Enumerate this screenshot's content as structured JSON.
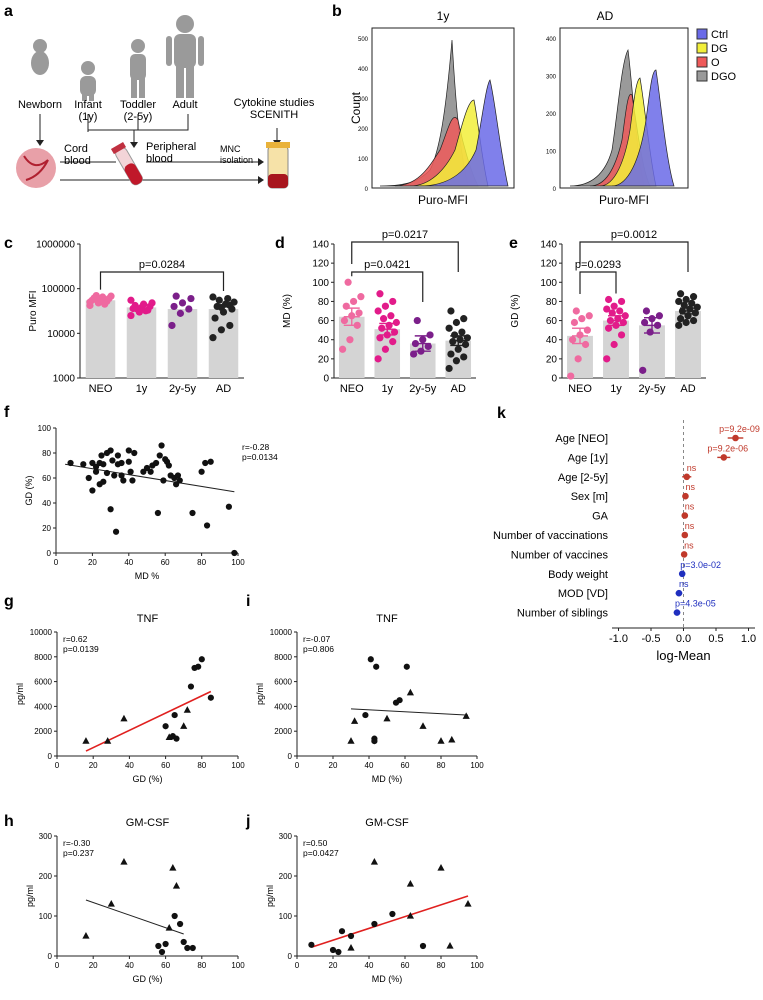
{
  "panel_letters": [
    "a",
    "b",
    "c",
    "d",
    "e",
    "f",
    "g",
    "h",
    "i",
    "j",
    "k"
  ],
  "panel_a": {
    "stages": [
      "Newborn",
      "Infant\n(1y)",
      "Toddler\n(2-5y)",
      "Adult"
    ],
    "labels": {
      "cord_blood": "Cord\nblood",
      "peripheral_blood": "Peripheral\nblood",
      "mnc": "MNC\nisolation",
      "studies": "Cytokine studies\nSCENITH"
    }
  },
  "panel_b": {
    "legend": [
      {
        "name": "Ctrl",
        "color": "#6a6ae8"
      },
      {
        "name": "DG",
        "color": "#f2ef3a"
      },
      {
        "name": "O",
        "color": "#ef5a5a"
      },
      {
        "name": "DGO",
        "color": "#9a9a9a"
      }
    ],
    "plots": [
      {
        "title": "1y",
        "ylabel": "Count",
        "xlabel": "Puro-MFI",
        "yticks": [
          "0",
          "100",
          "200",
          "300",
          "400",
          "500"
        ]
      },
      {
        "title": "AD",
        "ylabel": "",
        "xlabel": "Puro-MFI",
        "yticks": [
          "0",
          "100",
          "200",
          "300",
          "400"
        ]
      }
    ]
  },
  "chart_data": [
    {
      "id": "c",
      "type": "bar",
      "scale": "log",
      "ylabel": "Puro MFI",
      "categories": [
        "NEO",
        "1y",
        "2y-5y",
        "AD"
      ],
      "values": [
        55000,
        38000,
        35000,
        35000
      ],
      "colors": [
        "#ef6aa0",
        "#e21b8a",
        "#7b1f8a",
        "#222222"
      ],
      "yticks": [
        "1000",
        "10000",
        "100000",
        "1000000"
      ],
      "ylim": [
        1000,
        1000000
      ],
      "points": [
        [
          42000,
          48000,
          52000,
          55000,
          58000,
          60000,
          62000,
          65000,
          68000,
          70000,
          45000,
          50000
        ],
        [
          25000,
          30000,
          33000,
          36000,
          38000,
          40000,
          42000,
          45000,
          48000,
          35000,
          32000,
          55000
        ],
        [
          15000,
          28000,
          35000,
          40000,
          48000,
          60000,
          68000
        ],
        [
          8000,
          12000,
          15000,
          22000,
          30000,
          35000,
          40000,
          45000,
          50000,
          55000,
          60000,
          65000,
          38000,
          42000
        ]
      ],
      "brackets": [
        {
          "from": 0,
          "to": 3,
          "label": "p=0.0284",
          "level": 1
        }
      ]
    },
    {
      "id": "d",
      "type": "bar",
      "scale": "linear",
      "ylabel": "MD (%)",
      "categories": [
        "NEO",
        "1y",
        "2y-5y",
        "AD"
      ],
      "values": [
        64,
        51,
        36,
        39
      ],
      "errors": [
        9,
        6,
        8,
        5
      ],
      "colors": [
        "#ef6aa0",
        "#e21b8a",
        "#7b1f8a",
        "#222222"
      ],
      "yticks": [
        "0",
        "20",
        "40",
        "60",
        "80",
        "100",
        "120",
        "140"
      ],
      "ylim": [
        0,
        140
      ],
      "points": [
        [
          30,
          40,
          55,
          60,
          65,
          68,
          75,
          80,
          85,
          100
        ],
        [
          20,
          30,
          38,
          42,
          45,
          48,
          52,
          55,
          58,
          62,
          65,
          70,
          75,
          80,
          88
        ],
        [
          25,
          28,
          33,
          36,
          40,
          45,
          60
        ],
        [
          10,
          18,
          22,
          25,
          30,
          35,
          38,
          40,
          42,
          45,
          48,
          52,
          58,
          62,
          70
        ]
      ],
      "brackets": [
        {
          "from": 0,
          "to": 2,
          "label": "p=0.0421",
          "level": 1
        },
        {
          "from": 0,
          "to": 3,
          "label": "p=0.0217",
          "level": 2
        }
      ]
    },
    {
      "id": "e",
      "type": "bar",
      "scale": "linear",
      "ylabel": "GD (%)",
      "categories": [
        "NEO",
        "1y",
        "2y-5y",
        "AD"
      ],
      "values": [
        44,
        60,
        55,
        70
      ],
      "errors": [
        8,
        5,
        8,
        3
      ],
      "colors": [
        "#ef6aa0",
        "#e21b8a",
        "#7b1f8a",
        "#222222"
      ],
      "yticks": [
        "0",
        "20",
        "40",
        "60",
        "80",
        "100",
        "120",
        "140"
      ],
      "ylim": [
        0,
        140
      ],
      "points": [
        [
          2,
          20,
          35,
          40,
          45,
          50,
          58,
          62,
          65,
          70
        ],
        [
          20,
          35,
          45,
          52,
          55,
          58,
          60,
          62,
          65,
          68,
          70,
          72,
          75,
          80,
          82
        ],
        [
          8,
          48,
          55,
          58,
          62,
          65,
          70
        ],
        [
          55,
          58,
          60,
          62,
          65,
          68,
          70,
          72,
          74,
          76,
          78,
          80,
          82,
          85,
          88
        ]
      ],
      "brackets": [
        {
          "from": 0,
          "to": 1,
          "label": "p=0.0293",
          "level": 1
        },
        {
          "from": 0,
          "to": 3,
          "label": "p=0.0012",
          "level": 2
        }
      ]
    },
    {
      "id": "f",
      "type": "scatter",
      "xlabel": "MD %",
      "ylabel": "GD (%)",
      "xticks": [
        "0",
        "20",
        "40",
        "60",
        "80",
        "100"
      ],
      "yticks": [
        "0",
        "20",
        "40",
        "60",
        "80",
        "100"
      ],
      "xlim": [
        0,
        100
      ],
      "ylim": [
        0,
        100
      ],
      "stats": [
        "r=-0.28",
        "p=0.0134"
      ],
      "fit": {
        "x0": 5,
        "y0": 71,
        "x1": 98,
        "y1": 49,
        "color": "#222"
      },
      "points": [
        [
          8,
          72
        ],
        [
          15,
          71
        ],
        [
          18,
          60
        ],
        [
          20,
          50
        ],
        [
          20,
          72
        ],
        [
          22,
          65
        ],
        [
          22,
          69
        ],
        [
          24,
          55
        ],
        [
          24,
          72
        ],
        [
          25,
          78
        ],
        [
          26,
          71
        ],
        [
          26,
          57
        ],
        [
          28,
          80
        ],
        [
          28,
          64
        ],
        [
          30,
          35
        ],
        [
          30,
          82
        ],
        [
          31,
          74
        ],
        [
          32,
          62
        ],
        [
          33,
          17
        ],
        [
          34,
          71
        ],
        [
          34,
          78
        ],
        [
          36,
          72
        ],
        [
          36,
          62
        ],
        [
          37,
          58
        ],
        [
          40,
          73
        ],
        [
          40,
          82
        ],
        [
          41,
          65
        ],
        [
          42,
          58
        ],
        [
          43,
          80
        ],
        [
          48,
          65
        ],
        [
          50,
          68
        ],
        [
          52,
          65
        ],
        [
          53,
          70
        ],
        [
          55,
          72
        ],
        [
          56,
          32
        ],
        [
          57,
          78
        ],
        [
          58,
          86
        ],
        [
          59,
          58
        ],
        [
          60,
          75
        ],
        [
          61,
          73
        ],
        [
          62,
          70
        ],
        [
          63,
          62
        ],
        [
          65,
          60
        ],
        [
          66,
          55
        ],
        [
          67,
          62
        ],
        [
          68,
          58
        ],
        [
          75,
          32
        ],
        [
          80,
          65
        ],
        [
          82,
          72
        ],
        [
          83,
          22
        ],
        [
          85,
          73
        ],
        [
          95,
          37
        ],
        [
          98,
          0
        ]
      ]
    },
    {
      "id": "g",
      "type": "scatter",
      "title": "TNF",
      "xlabel": "GD (%)",
      "ylabel": "pg/ml",
      "xticks": [
        "0",
        "20",
        "40",
        "60",
        "80",
        "100"
      ],
      "yticks": [
        "0",
        "2000",
        "4000",
        "6000",
        "8000",
        "10000"
      ],
      "xlim": [
        0,
        100
      ],
      "ylim": [
        0,
        10000
      ],
      "stats": [
        "r=0.62",
        "p=0.0139"
      ],
      "fit": {
        "x0": 16,
        "y0": 400,
        "x1": 85,
        "y1": 5200,
        "color": "#e0201f"
      },
      "points": [
        {
          "x": 16,
          "y": 1200,
          "m": "t"
        },
        {
          "x": 28,
          "y": 1200,
          "m": "t"
        },
        {
          "x": 37,
          "y": 3000,
          "m": "t"
        },
        {
          "x": 60,
          "y": 2400,
          "m": "c"
        },
        {
          "x": 62,
          "y": 1500,
          "m": "t"
        },
        {
          "x": 64,
          "y": 1600,
          "m": "c"
        },
        {
          "x": 65,
          "y": 3300,
          "m": "c"
        },
        {
          "x": 66,
          "y": 1400,
          "m": "c"
        },
        {
          "x": 70,
          "y": 2400,
          "m": "t"
        },
        {
          "x": 72,
          "y": 3700,
          "m": "t"
        },
        {
          "x": 74,
          "y": 5600,
          "m": "c"
        },
        {
          "x": 76,
          "y": 7100,
          "m": "c"
        },
        {
          "x": 78,
          "y": 7200,
          "m": "c"
        },
        {
          "x": 80,
          "y": 7800,
          "m": "c"
        },
        {
          "x": 85,
          "y": 4700,
          "m": "c"
        }
      ]
    },
    {
      "id": "i",
      "type": "scatter",
      "title": "TNF",
      "xlabel": "MD (%)",
      "ylabel": "pg/ml",
      "xticks": [
        "0",
        "20",
        "40",
        "60",
        "80",
        "100"
      ],
      "yticks": [
        "0",
        "2000",
        "4000",
        "6000",
        "8000",
        "10000"
      ],
      "xlim": [
        0,
        100
      ],
      "ylim": [
        0,
        10000
      ],
      "stats": [
        "r=-0.07",
        "p=0.806"
      ],
      "fit": {
        "x0": 30,
        "y0": 3800,
        "x1": 95,
        "y1": 3300,
        "color": "#222"
      },
      "points": [
        {
          "x": 30,
          "y": 1200,
          "m": "t"
        },
        {
          "x": 32,
          "y": 2800,
          "m": "t"
        },
        {
          "x": 38,
          "y": 3300,
          "m": "c"
        },
        {
          "x": 41,
          "y": 7800,
          "m": "c"
        },
        {
          "x": 43,
          "y": 1400,
          "m": "c"
        },
        {
          "x": 43,
          "y": 1200,
          "m": "c"
        },
        {
          "x": 44,
          "y": 7200,
          "m": "c"
        },
        {
          "x": 50,
          "y": 3000,
          "m": "t"
        },
        {
          "x": 55,
          "y": 4300,
          "m": "c"
        },
        {
          "x": 57,
          "y": 4500,
          "m": "c"
        },
        {
          "x": 61,
          "y": 7200,
          "m": "c"
        },
        {
          "x": 63,
          "y": 5100,
          "m": "t"
        },
        {
          "x": 70,
          "y": 2400,
          "m": "t"
        },
        {
          "x": 80,
          "y": 1200,
          "m": "t"
        },
        {
          "x": 86,
          "y": 1300,
          "m": "t"
        },
        {
          "x": 94,
          "y": 3200,
          "m": "t"
        }
      ]
    },
    {
      "id": "h",
      "type": "scatter",
      "title": "GM-CSF",
      "xlabel": "GD (%)",
      "ylabel": "pg/ml",
      "xticks": [
        "0",
        "20",
        "40",
        "60",
        "80",
        "100"
      ],
      "yticks": [
        "0",
        "100",
        "200",
        "300"
      ],
      "xlim": [
        0,
        100
      ],
      "ylim": [
        0,
        300
      ],
      "stats": [
        "r=-0.30",
        "p=0.237"
      ],
      "fit": {
        "x0": 16,
        "y0": 140,
        "x1": 70,
        "y1": 55,
        "color": "#222"
      },
      "points": [
        {
          "x": 16,
          "y": 50,
          "m": "t"
        },
        {
          "x": 30,
          "y": 130,
          "m": "t"
        },
        {
          "x": 37,
          "y": 235,
          "m": "t"
        },
        {
          "x": 56,
          "y": 25,
          "m": "c"
        },
        {
          "x": 58,
          "y": 10,
          "m": "c"
        },
        {
          "x": 60,
          "y": 30,
          "m": "c"
        },
        {
          "x": 62,
          "y": 70,
          "m": "t"
        },
        {
          "x": 64,
          "y": 220,
          "m": "t"
        },
        {
          "x": 65,
          "y": 100,
          "m": "c"
        },
        {
          "x": 66,
          "y": 175,
          "m": "t"
        },
        {
          "x": 68,
          "y": 80,
          "m": "c"
        },
        {
          "x": 70,
          "y": 35,
          "m": "c"
        },
        {
          "x": 72,
          "y": 20,
          "m": "c"
        },
        {
          "x": 75,
          "y": 20,
          "m": "c"
        }
      ]
    },
    {
      "id": "j",
      "type": "scatter",
      "title": "GM-CSF",
      "xlabel": "MD (%)",
      "ylabel": "pg/ml",
      "xticks": [
        "0",
        "20",
        "40",
        "60",
        "80",
        "100"
      ],
      "yticks": [
        "0",
        "100",
        "200",
        "300"
      ],
      "xlim": [
        0,
        100
      ],
      "ylim": [
        0,
        300
      ],
      "stats": [
        "r=0.50",
        "p=0.0427"
      ],
      "fit": {
        "x0": 8,
        "y0": 22,
        "x1": 95,
        "y1": 150,
        "color": "#e0201f"
      },
      "points": [
        {
          "x": 8,
          "y": 28,
          "m": "c"
        },
        {
          "x": 20,
          "y": 15,
          "m": "c"
        },
        {
          "x": 23,
          "y": 10,
          "m": "c"
        },
        {
          "x": 25,
          "y": 62,
          "m": "c"
        },
        {
          "x": 30,
          "y": 50,
          "m": "c"
        },
        {
          "x": 30,
          "y": 20,
          "m": "t"
        },
        {
          "x": 43,
          "y": 80,
          "m": "c"
        },
        {
          "x": 43,
          "y": 235,
          "m": "t"
        },
        {
          "x": 53,
          "y": 105,
          "m": "c"
        },
        {
          "x": 63,
          "y": 180,
          "m": "t"
        },
        {
          "x": 63,
          "y": 100,
          "m": "t"
        },
        {
          "x": 70,
          "y": 25,
          "m": "c"
        },
        {
          "x": 80,
          "y": 220,
          "m": "t"
        },
        {
          "x": 85,
          "y": 25,
          "m": "t"
        },
        {
          "x": 95,
          "y": 130,
          "m": "t"
        }
      ]
    },
    {
      "id": "k",
      "type": "forest",
      "xlabel": "log-Mean",
      "xticks": [
        "-1.0",
        "-0.5",
        "0.0",
        "0.5",
        "1.0"
      ],
      "xlim": [
        -1.1,
        1.1
      ],
      "rows": [
        {
          "label": "Age [NEO]",
          "est": 0.8,
          "lo": 0.68,
          "hi": 0.92,
          "p": "p=9.2e-09",
          "color": "#c0392b"
        },
        {
          "label": "Age [1y]",
          "est": 0.62,
          "lo": 0.52,
          "hi": 0.72,
          "p": "p=9.2e-06",
          "color": "#c0392b"
        },
        {
          "label": "Age [2-5y]",
          "est": 0.05,
          "lo": -0.02,
          "hi": 0.12,
          "p": "ns",
          "color": "#c0392b"
        },
        {
          "label": "Sex [m]",
          "est": 0.03,
          "lo": -0.01,
          "hi": 0.07,
          "p": "ns",
          "color": "#c0392b"
        },
        {
          "label": "GA",
          "est": 0.02,
          "lo": -0.01,
          "hi": 0.05,
          "p": "ns",
          "color": "#c0392b"
        },
        {
          "label": "Number of vaccinations",
          "est": 0.02,
          "lo": -0.01,
          "hi": 0.05,
          "p": "ns",
          "color": "#c0392b"
        },
        {
          "label": "Number of vaccines",
          "est": 0.01,
          "lo": -0.02,
          "hi": 0.04,
          "p": "ns",
          "color": "#c0392b"
        },
        {
          "label": "Body weight",
          "est": -0.02,
          "lo": -0.05,
          "hi": 0.01,
          "p": "p=3.0e-02",
          "color": "#1f2fbf"
        },
        {
          "label": "MOD [VD]",
          "est": -0.07,
          "lo": -0.12,
          "hi": -0.02,
          "p": "ns",
          "color": "#1f2fbf"
        },
        {
          "label": "Number of siblings",
          "est": -0.1,
          "lo": -0.15,
          "hi": -0.05,
          "p": "p=4.3e-05",
          "color": "#1f2fbf"
        }
      ]
    }
  ]
}
